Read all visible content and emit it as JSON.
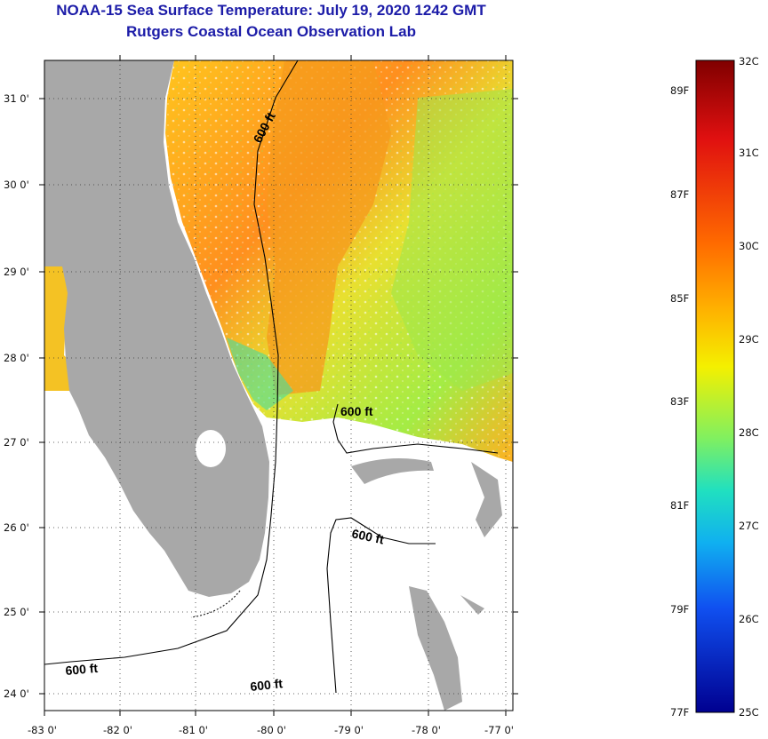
{
  "title": {
    "line1": "NOAA-15 Sea Surface Temperature:  July 19, 2020 1242 GMT",
    "line2": "Rutgers Coastal Ocean Observation Lab"
  },
  "map": {
    "lat_labels": [
      "31 0'",
      "30 0'",
      "29 0'",
      "28 0'",
      "27 0'",
      "26 0'",
      "25 0'",
      "24 0'"
    ],
    "lon_labels": [
      "-83 0'",
      "-82 0'",
      "-81 0'",
      "-80 0'",
      "-79 0'",
      "-78 0'",
      "-77 0'"
    ],
    "contour_label": "600 ft",
    "colors": {
      "land": "#a8a8a8",
      "warm": "#ff9a1e",
      "mid": "#ffd21e",
      "cool": "#a6f03c",
      "cold": "#3cdc96"
    }
  },
  "colorbar": {
    "celsius_labels": [
      "32C",
      "31C",
      "30C",
      "29C",
      "28C",
      "27C",
      "26C",
      "25C"
    ],
    "fahrenheit_labels": [
      "89F",
      "87F",
      "85F",
      "83F",
      "81F",
      "79F",
      "77F"
    ],
    "range_c": [
      25,
      32
    ]
  }
}
